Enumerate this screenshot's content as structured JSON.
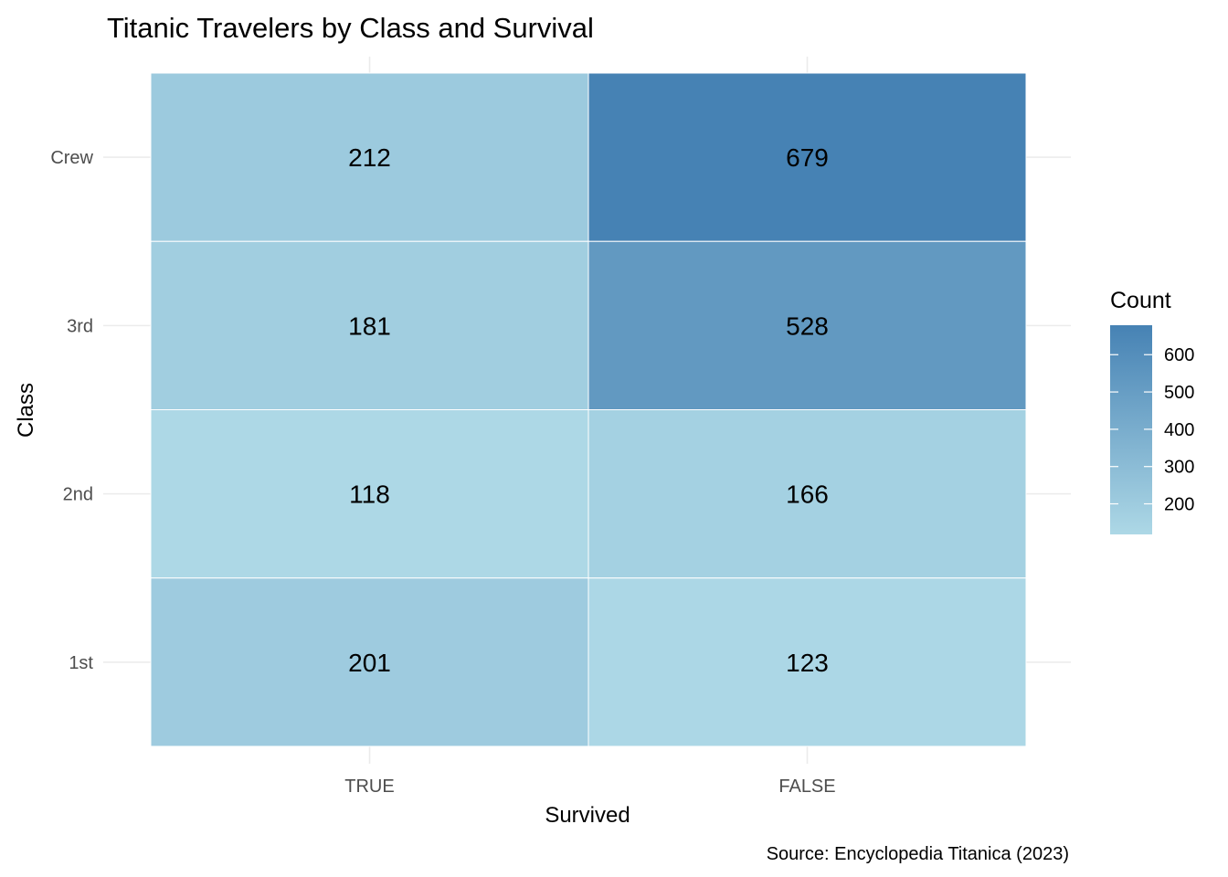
{
  "chart_data": {
    "type": "heatmap",
    "title": "Titanic Travelers by Class and Survival",
    "xlabel": "Survived",
    "ylabel": "Class",
    "x_categories": [
      "TRUE",
      "FALSE"
    ],
    "y_categories": [
      "1st",
      "2nd",
      "3rd",
      "Crew"
    ],
    "cells": [
      {
        "x": "TRUE",
        "y": "Crew",
        "value": 212
      },
      {
        "x": "FALSE",
        "y": "Crew",
        "value": 679
      },
      {
        "x": "TRUE",
        "y": "3rd",
        "value": 181
      },
      {
        "x": "FALSE",
        "y": "3rd",
        "value": 528
      },
      {
        "x": "TRUE",
        "y": "2nd",
        "value": 118
      },
      {
        "x": "FALSE",
        "y": "2nd",
        "value": 166
      },
      {
        "x": "TRUE",
        "y": "1st",
        "value": 201
      },
      {
        "x": "FALSE",
        "y": "1st",
        "value": 123
      }
    ],
    "legend": {
      "title": "Count",
      "ticks": [
        200,
        300,
        400,
        500,
        600
      ],
      "range": [
        118,
        679
      ],
      "low_color": "#add8e6",
      "high_color": "#4682b4",
      "placement": "right"
    },
    "caption": "Source: Encyclopedia Titanica (2023)",
    "grid": true
  }
}
